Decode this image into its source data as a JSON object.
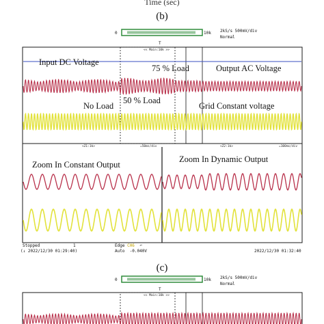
{
  "caption_top": "Time (sec)",
  "figure_b": {
    "label": "(b)",
    "ruler_left": "0",
    "ruler_right": "10k",
    "trigger_marker": "T",
    "sample_rate": "2kS/s 500mV/div",
    "mode": "Normal",
    "zoom_top": "<< Main:10k >>",
    "zoom_mid_left": "<Z1:1k>",
    "zoom_mid_right": "<Z2:1k>",
    "tdiv_left": "=50ms/div",
    "tdiv_right": "=100ms/div",
    "annotations": {
      "input_dc": "Input DC Voltage",
      "load75": "75 % Load",
      "output_ac": "Output AC Voltage",
      "no_load": "No Load",
      "load50": "50 % Load",
      "grid_const": "Grid Constant voltage",
      "zoom_const": "Zoom In Constant Output",
      "zoom_dyn": "Zoom In Dynamic Output"
    },
    "footer": {
      "status": "Stopped",
      "count": "1",
      "date_left": "2022/12/30 01:29:40",
      "trigger_label": "Edge",
      "trigger_channel": "CH6",
      "trigger_mode": "Auto",
      "trigger_level": "-0.040V",
      "date_right": "2022/12/30 01:32:40"
    }
  },
  "figure_c": {
    "label": "(c)",
    "ruler_left": "0",
    "ruler_right": "10k",
    "trigger_marker": "T",
    "sample_rate": "2kS/s 500mV/div",
    "mode": "Normal",
    "zoom_top": "<< Main:10k >>"
  },
  "colors": {
    "ac_trace": "#b8304a",
    "grid_trace": "#e2e23a",
    "dc_line": "#3a4fc0",
    "ruler_green": "#2e8b3a",
    "frame": "#1a1a1a"
  }
}
